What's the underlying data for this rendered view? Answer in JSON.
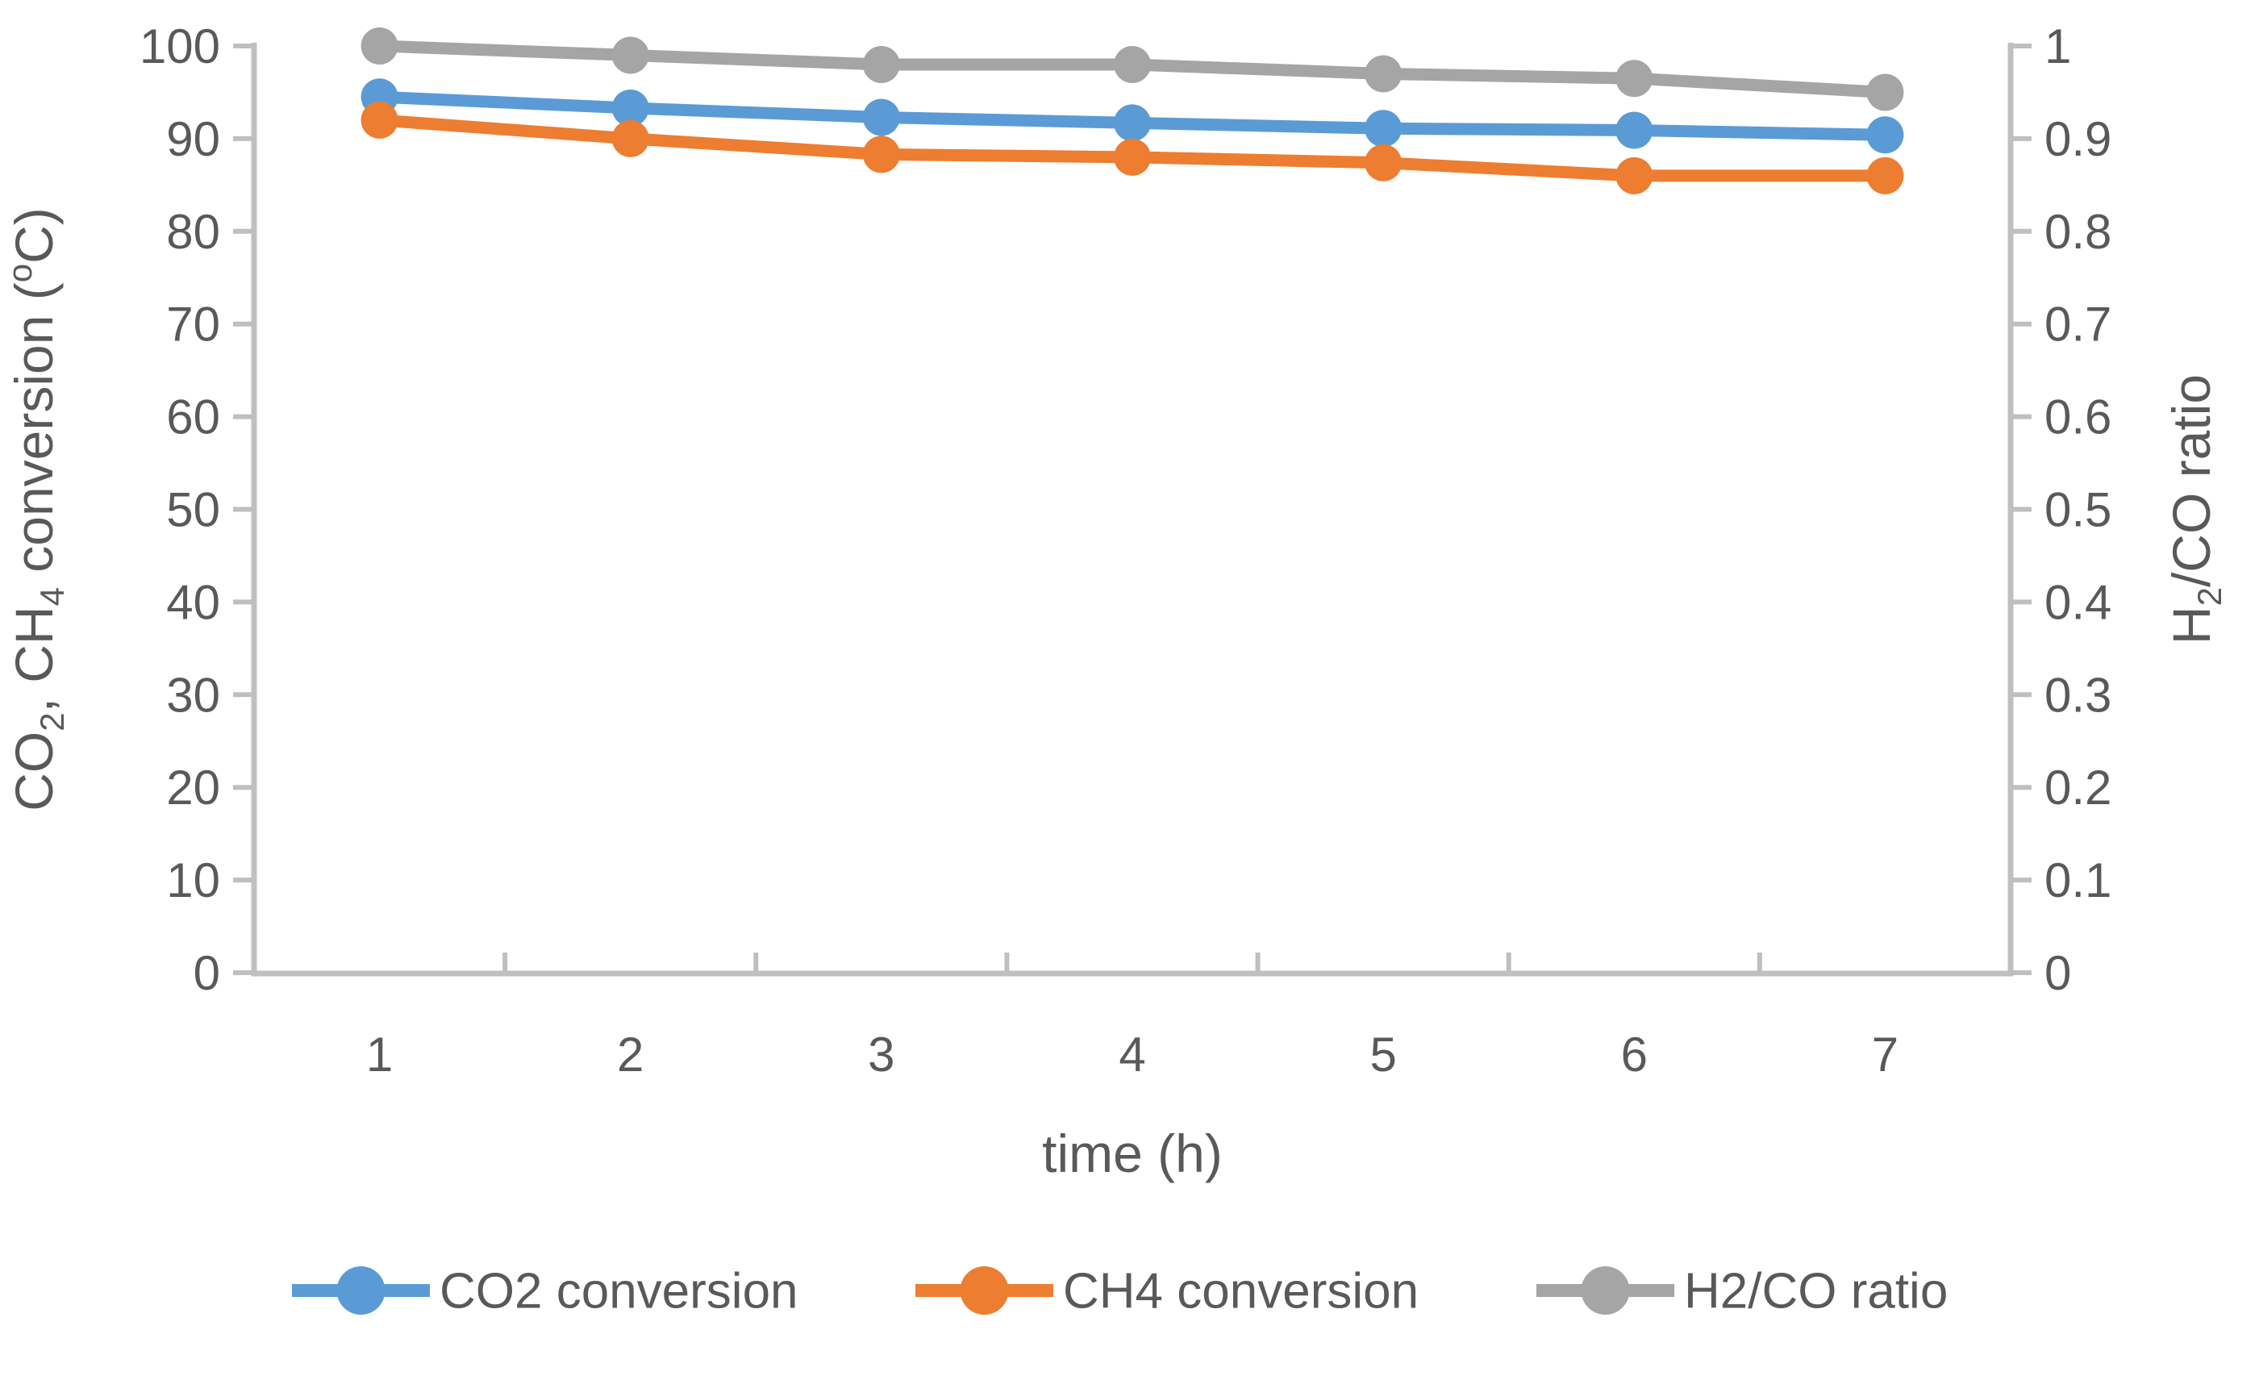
{
  "figure": {
    "background": "#ffffff"
  },
  "chart_data": {
    "type": "line",
    "title": "",
    "x": [
      1,
      2,
      3,
      4,
      5,
      6,
      7
    ],
    "xlabel": "time (h)",
    "x_tick_labels": [
      "1",
      "2",
      "3",
      "4",
      "5",
      "6",
      "7"
    ],
    "grid": false,
    "legend_position": "bottom",
    "left_axis": {
      "label": "CO2, CH4 conversion (oC)",
      "label_parts": [
        {
          "text": "CO"
        },
        {
          "text": "2",
          "script": "sub"
        },
        {
          "text": ", CH"
        },
        {
          "text": "4",
          "script": "sub"
        },
        {
          "text": " conversion ("
        },
        {
          "text": "o",
          "script": "sup"
        },
        {
          "text": "C)"
        }
      ],
      "min": 0,
      "max": 100,
      "step": 10,
      "tick_labels": [
        "100",
        "90",
        "80",
        "70",
        "60",
        "50",
        "40",
        "30",
        "20",
        "10",
        "0"
      ]
    },
    "right_axis": {
      "label": "H2/CO ratio",
      "label_parts": [
        {
          "text": "H"
        },
        {
          "text": "2",
          "script": "sub"
        },
        {
          "text": "/CO ratio"
        }
      ],
      "min": 0,
      "max": 1,
      "step": 0.1,
      "tick_labels": [
        "1",
        "0.9",
        "0.8",
        "0.7",
        "0.6",
        "0.5",
        "0.4",
        "0.3",
        "0.2",
        "0.1",
        "0"
      ]
    },
    "series": [
      {
        "name": "CO2 conversion",
        "axis": "left",
        "color": "#5B9BD5",
        "marker": "circle",
        "values": [
          94.5,
          93.3,
          92.3,
          91.7,
          91.1,
          90.9,
          90.4
        ]
      },
      {
        "name": "CH4 conversion",
        "axis": "left",
        "color": "#ED7D31",
        "marker": "circle",
        "values": [
          92.0,
          90.0,
          88.3,
          88.0,
          87.4,
          86.0,
          86.0
        ]
      },
      {
        "name": "H2/CO ratio",
        "axis": "right",
        "color": "#A5A5A5",
        "marker": "circle",
        "values": [
          1.0,
          0.99,
          0.98,
          0.98,
          0.97,
          0.965,
          0.95
        ]
      }
    ],
    "colors": {
      "axis_line": "#BFBFBF",
      "tick_label": "#595959",
      "axis_title": "#595959",
      "legend_text": "#595959"
    }
  }
}
